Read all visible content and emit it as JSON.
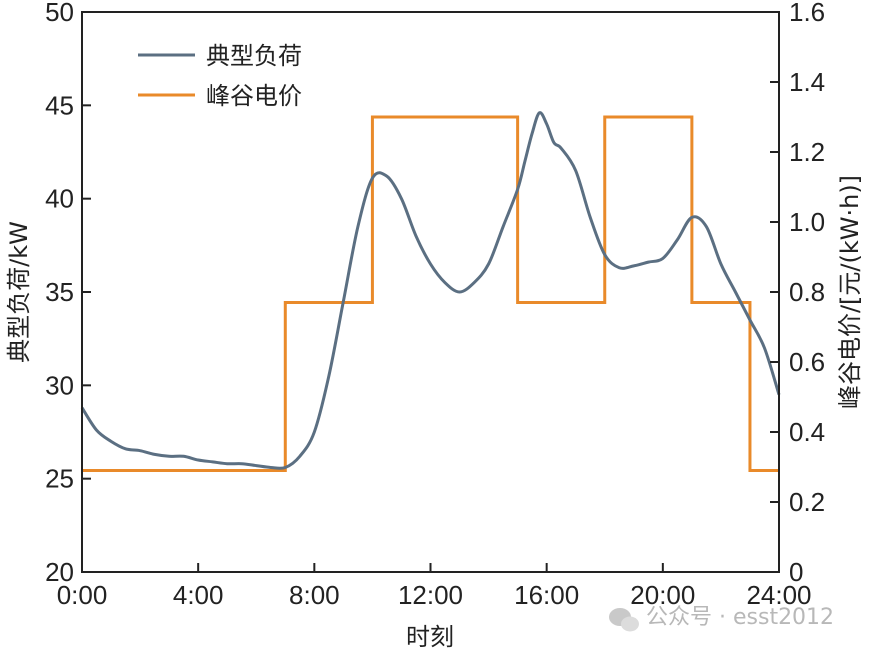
{
  "chart_data": {
    "type": "line",
    "xlabel": "时刻",
    "ylabel_left": "典型负荷/kW",
    "ylabel_right": "峰谷电价/[元/(kW·h)]",
    "x_ticks": [
      "0:00",
      "4:00",
      "8:00",
      "12:00",
      "16:00",
      "20:00",
      "24:00"
    ],
    "xlim": [
      0,
      24
    ],
    "ylim_left": [
      20,
      50
    ],
    "y_ticks_left": [
      "20",
      "25",
      "30",
      "35",
      "40",
      "45",
      "50"
    ],
    "ylim_right": [
      0,
      1.6
    ],
    "y_ticks_right": [
      "0",
      "0.2",
      "0.4",
      "0.6",
      "0.8",
      "1.0",
      "1.2",
      "1.4",
      "1.6"
    ],
    "legend_position": "top-left",
    "series": [
      {
        "name": "典型负荷",
        "axis": "left",
        "color": "#5b6f82",
        "x": [
          0,
          0.5,
          1,
          1.5,
          2,
          2.5,
          3,
          3.5,
          4,
          4.5,
          5,
          5.5,
          6,
          6.5,
          7,
          7.5,
          8,
          8.5,
          9,
          9.5,
          10,
          10.5,
          11,
          11.5,
          12,
          12.5,
          13,
          13.5,
          14,
          14.5,
          15,
          15.25,
          15.5,
          15.75,
          16,
          16.25,
          16.5,
          17,
          17.5,
          18,
          18.5,
          19,
          19.5,
          20,
          20.5,
          21,
          21.5,
          22,
          22.5,
          23,
          23.5,
          24
        ],
        "y": [
          28.8,
          27.6,
          27.0,
          26.6,
          26.5,
          26.3,
          26.2,
          26.2,
          26.0,
          25.9,
          25.8,
          25.8,
          25.7,
          25.6,
          25.6,
          26.2,
          27.5,
          30.5,
          34.5,
          38.5,
          41.1,
          41.2,
          40.0,
          38.0,
          36.5,
          35.5,
          35.0,
          35.5,
          36.5,
          38.5,
          40.5,
          42.0,
          43.5,
          44.6,
          44.0,
          43.0,
          42.7,
          41.5,
          39.0,
          37.0,
          36.3,
          36.4,
          36.6,
          36.8,
          37.8,
          39.0,
          38.5,
          36.5,
          35.0,
          33.5,
          32.0,
          29.5
        ]
      },
      {
        "name": "峰谷电价",
        "axis": "right",
        "color": "#e98a2a",
        "step_x": [
          0,
          7,
          10,
          15,
          18,
          21,
          23,
          24
        ],
        "step_y": [
          0.29,
          0.77,
          1.3,
          0.77,
          1.3,
          0.77,
          0.29
        ]
      }
    ]
  },
  "watermark": {
    "text": "公众号 · esst2012",
    "icon": "wechat-icon"
  }
}
